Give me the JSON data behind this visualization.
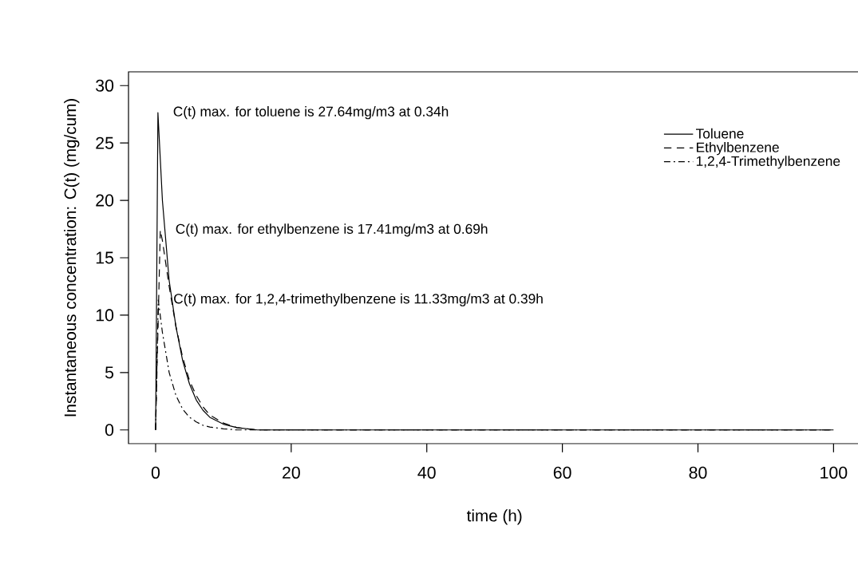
{
  "chart_data": {
    "type": "line",
    "xlabel": "time (h)",
    "ylabel": "Instantaneous concentration: C(t) (mg/cum)",
    "xlim": [
      -4,
      104
    ],
    "ylim": [
      -1.2,
      31.2
    ],
    "xticks": [
      0,
      20,
      40,
      60,
      80,
      100
    ],
    "yticks": [
      0,
      5,
      10,
      15,
      20,
      25,
      30
    ],
    "grid": false,
    "legend": "top right",
    "marker": "none",
    "series": [
      {
        "name": "Toluene",
        "color": "#000000",
        "line_style": "solid",
        "x": [
          0,
          0.34,
          1,
          2,
          3,
          4,
          5,
          6,
          7,
          8,
          10,
          12,
          15,
          100
        ],
        "values": [
          0,
          27.64,
          20,
          13,
          9,
          6,
          4,
          2.6,
          1.7,
          1.1,
          0.5,
          0.2,
          0,
          0
        ]
      },
      {
        "name": "Ethylbenzene",
        "color": "#000000",
        "line_style": "dashed",
        "x": [
          0,
          0.69,
          1,
          2,
          3,
          4,
          5,
          6,
          7,
          8,
          10,
          12,
          15,
          100
        ],
        "values": [
          0,
          17.41,
          16.5,
          12.5,
          9,
          6.3,
          4.3,
          3,
          2,
          1.3,
          0.6,
          0.2,
          0,
          0
        ]
      },
      {
        "name": "1,2,4-Trimethylbenzene",
        "color": "#000000",
        "line_style": "dashdot",
        "x": [
          0,
          0.39,
          1,
          2,
          3,
          4,
          5,
          6,
          7,
          8,
          10,
          12,
          100
        ],
        "values": [
          0,
          11.33,
          8.5,
          5,
          3,
          1.8,
          1.1,
          0.7,
          0.4,
          0.25,
          0.1,
          0,
          0
        ]
      }
    ],
    "annotations": [
      {
        "text": "C(t) max. for toluene is 27.64mg/m3 at 0.34h",
        "x": 0.34,
        "y": 27.64
      },
      {
        "text": "C(t) max. for ethylbenzene is 17.41mg/m3 at 0.69h",
        "x": 0.69,
        "y": 17.41
      },
      {
        "text": "C(t) max. for 1,2,4-trimethylbenzene is 11.33mg/m3 at 0.39h",
        "x": 0.39,
        "y": 11.33
      }
    ]
  }
}
